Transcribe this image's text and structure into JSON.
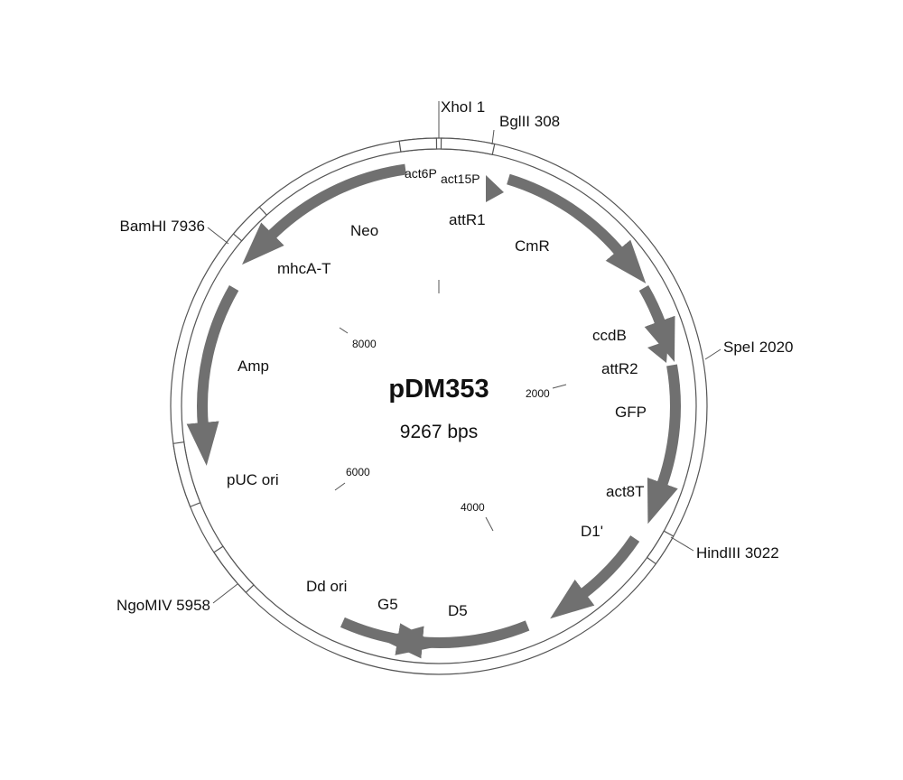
{
  "plasmid": {
    "name": "pDM353",
    "size_label": "9267 bps"
  },
  "colors": {
    "arrow": "#707070",
    "backbone": "#555555",
    "box_stroke": "#555555",
    "text": "#111111"
  },
  "restriction_sites": [
    {
      "id": "xhoi",
      "label": "XhoI 1"
    },
    {
      "id": "bglii",
      "label": "BglII 308"
    },
    {
      "id": "bamhi",
      "label": "BamHI 7936"
    },
    {
      "id": "spei",
      "label": "SpeI 2020"
    },
    {
      "id": "hindiii",
      "label": "HindIII 3022"
    },
    {
      "id": "ngomiv",
      "label": "NgoMIV 5958"
    }
  ],
  "features": [
    {
      "id": "act6p",
      "label": "act6P"
    },
    {
      "id": "act15p",
      "label": "act15P"
    },
    {
      "id": "neo",
      "label": "Neo"
    },
    {
      "id": "attr1",
      "label": "attR1"
    },
    {
      "id": "cmr",
      "label": "CmR"
    },
    {
      "id": "mhca-t",
      "label": "mhcA-T"
    },
    {
      "id": "ccdb",
      "label": "ccdB"
    },
    {
      "id": "attr2",
      "label": "attR2"
    },
    {
      "id": "amp",
      "label": "Amp"
    },
    {
      "id": "gfp",
      "label": "GFP"
    },
    {
      "id": "puc-ori",
      "label": "pUC ori"
    },
    {
      "id": "act8t",
      "label": "act8T"
    },
    {
      "id": "d1p",
      "label": "D1'"
    },
    {
      "id": "dd-ori",
      "label": "Dd ori"
    },
    {
      "id": "g5",
      "label": "G5"
    },
    {
      "id": "d5",
      "label": "D5"
    }
  ],
  "scale_ticks": [
    "8000",
    "2000",
    "6000",
    "4000"
  ]
}
